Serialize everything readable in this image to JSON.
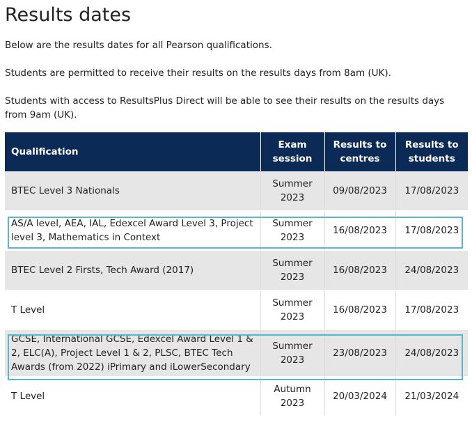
{
  "page": {
    "title": "Results dates",
    "intro": "Below are the results dates for all Pearson qualifications.",
    "permitted": "Students are permitted to receive their results on the results days from 8am (UK).",
    "resultsplus": "Students with access to ResultsPlus Direct will be able to see their results on the results days from 9am (UK)."
  },
  "table": {
    "headers": {
      "qualification": "Qualification",
      "exam_session": "Exam session",
      "results_to_centres": "Results to centres",
      "results_to_students": "Results to students"
    },
    "rows": [
      {
        "qualification": "BTEC Level 3 Nationals",
        "session": "Summer 2023",
        "centres": "09/08/2023",
        "students": "17/08/2023"
      },
      {
        "qualification": "AS/A level, AEA, IAL, Edexcel Award Level 3, Project level 3, Mathematics in Context",
        "session": "Summer 2023",
        "centres": "16/08/2023",
        "students": "17/08/2023"
      },
      {
        "qualification": "BTEC Level 2 Firsts, Tech Award (2017)",
        "session": "Summer 2023",
        "centres": "16/08/2023",
        "students": "24/08/2023"
      },
      {
        "qualification": "T Level",
        "session": "Summer 2023",
        "centres": "16/08/2023",
        "students": "17/08/2023"
      },
      {
        "qualification": "GCSE, International GCSE, Edexcel Award Level 1 & 2, ELC(A), Project Level 1 & 2, PLSC, BTEC Tech Awards (from 2022) iPrimary and iLowerSecondary",
        "session": "Summer 2023",
        "centres": "23/08/2023",
        "students": "24/08/2023"
      },
      {
        "qualification": "T Level",
        "session": "Autumn 2023",
        "centres": "20/03/2024",
        "students": "21/03/2024"
      }
    ]
  },
  "colors": {
    "header_bg": "#0b2b56",
    "row_grey": "#e6e6e6",
    "highlight": "#56b6d4"
  }
}
